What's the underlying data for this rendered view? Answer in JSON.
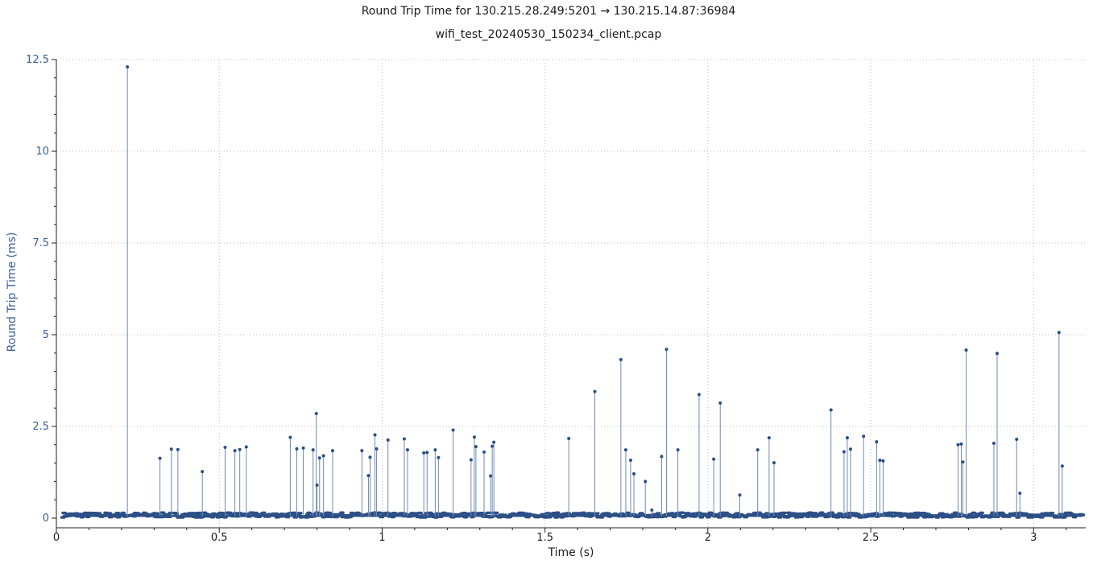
{
  "chart_data": {
    "type": "scatter",
    "title": "Round Trip Time for 130.215.28.249:5201 → 130.215.14.87:36984",
    "subtitle": "wifi_test_20240530_150234_client.pcap",
    "xlabel": "Time (s)",
    "ylabel": "Round Trip Time (ms)",
    "xlim": [
      0,
      3.16
    ],
    "ylim": [
      -0.15,
      12.5
    ],
    "x_ticks": [
      0,
      0.5,
      1,
      1.5,
      2,
      2.5,
      3
    ],
    "x_tick_labels": [
      "0",
      "0.5",
      "1",
      "1.5",
      "2",
      "2.5",
      "3"
    ],
    "y_ticks": [
      0,
      2.5,
      5,
      7.5,
      10,
      12.5
    ],
    "y_tick_labels": [
      "0",
      "2.5",
      "5",
      "7.5",
      "10",
      "12.5"
    ],
    "grid": true,
    "style": "impulse",
    "series_color": "#2c4f86",
    "baseline": {
      "x_start": 0.02,
      "x_end": 3.15,
      "y_min": 0.02,
      "y_max": 0.15
    },
    "series": [
      {
        "x": [
          0.218,
          0.318,
          0.353,
          0.373,
          0.448,
          0.518,
          0.548,
          0.563,
          0.583,
          0.718,
          0.738,
          0.758,
          0.788,
          0.798,
          0.8,
          0.808,
          0.82,
          0.848,
          0.938,
          0.958,
          0.963,
          0.978,
          0.983,
          1.018,
          1.068,
          1.078,
          1.128,
          1.138,
          1.163,
          1.173,
          1.218,
          1.273,
          1.283,
          1.288,
          1.313,
          1.333,
          1.338,
          1.343,
          1.573,
          1.653,
          1.733,
          1.748,
          1.763,
          1.773,
          1.808,
          1.828,
          1.858,
          1.873,
          1.908,
          1.973,
          2.018,
          2.038,
          2.098,
          2.153,
          2.188,
          2.203,
          2.378,
          2.418,
          2.428,
          2.438,
          2.478,
          2.518,
          2.528,
          2.538,
          2.768,
          2.778,
          2.783,
          2.793,
          2.878,
          2.888,
          2.948,
          2.958,
          3.078,
          3.088
        ],
        "y": [
          12.3,
          1.63,
          1.88,
          1.87,
          1.27,
          1.93,
          1.84,
          1.87,
          1.94,
          2.2,
          1.89,
          1.91,
          1.86,
          2.85,
          0.9,
          1.64,
          1.7,
          1.84,
          1.84,
          1.16,
          1.66,
          2.27,
          1.89,
          2.13,
          2.16,
          1.86,
          1.78,
          1.79,
          1.86,
          1.65,
          2.4,
          1.59,
          2.21,
          1.95,
          1.8,
          1.15,
          1.96,
          2.07,
          2.17,
          3.45,
          4.32,
          1.86,
          1.58,
          1.21,
          1.0,
          0.22,
          1.68,
          4.6,
          1.86,
          3.37,
          1.61,
          3.14,
          0.63,
          1.86,
          2.19,
          1.51,
          2.95,
          1.81,
          2.19,
          1.88,
          2.23,
          2.08,
          1.58,
          1.56,
          2.0,
          2.02,
          1.53,
          4.58,
          2.04,
          4.49,
          2.15,
          0.68,
          5.06,
          1.42
        ]
      }
    ]
  }
}
